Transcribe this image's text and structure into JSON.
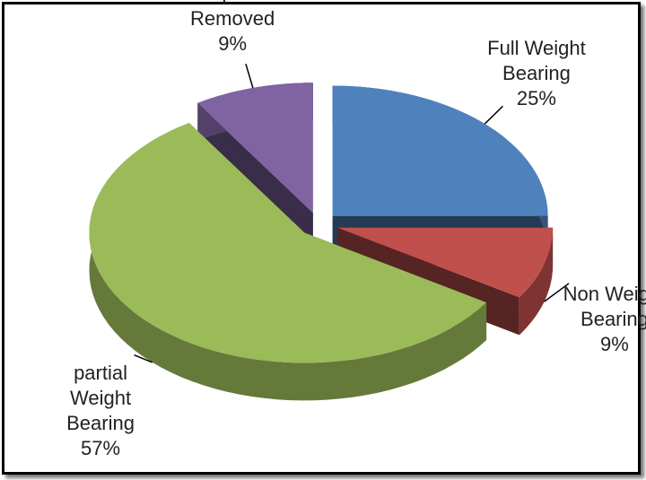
{
  "chart_data": {
    "type": "pie",
    "categories": [
      "Full Weight Bearing",
      "Non Weight Bearing",
      "partial Weight Bearing",
      "Implant Removed"
    ],
    "values": [
      25,
      9,
      57,
      9
    ],
    "value_labels": [
      "25%",
      "9%",
      "57%",
      "9%"
    ],
    "colors": [
      "#4f81bd",
      "#c0504d",
      "#9bbb59",
      "#8064a2"
    ]
  }
}
